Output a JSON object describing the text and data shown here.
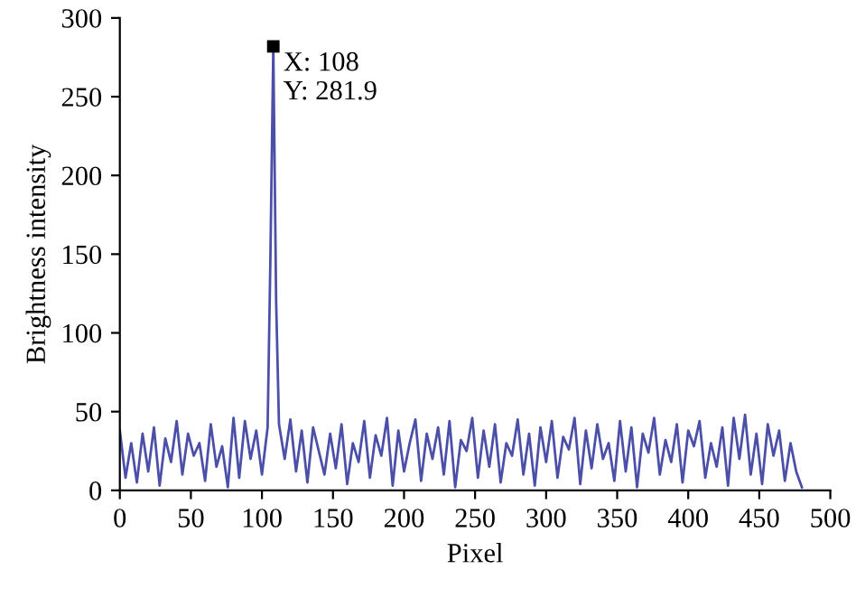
{
  "chart_data": {
    "type": "line",
    "xlabel": "Pixel",
    "ylabel": "Brightness intensity",
    "xlim": [
      0,
      500
    ],
    "ylim": [
      0,
      300
    ],
    "xticks": [
      0,
      50,
      100,
      150,
      200,
      250,
      300,
      350,
      400,
      450,
      500
    ],
    "yticks": [
      0,
      50,
      100,
      150,
      200,
      250,
      300
    ],
    "grid": false,
    "marker": "none",
    "line_style": "solid",
    "series": [
      {
        "color": "#4b4fa8",
        "x": [
          0,
          4,
          8,
          12,
          16,
          20,
          24,
          28,
          32,
          36,
          40,
          44,
          48,
          52,
          56,
          60,
          64,
          68,
          72,
          76,
          80,
          84,
          88,
          92,
          96,
          100,
          104,
          106,
          108,
          110,
          112,
          116,
          120,
          124,
          128,
          132,
          136,
          140,
          144,
          148,
          152,
          156,
          160,
          164,
          168,
          172,
          176,
          180,
          184,
          188,
          192,
          196,
          200,
          204,
          208,
          212,
          216,
          220,
          224,
          228,
          232,
          236,
          240,
          244,
          248,
          252,
          256,
          260,
          264,
          268,
          272,
          276,
          280,
          284,
          288,
          292,
          296,
          300,
          304,
          308,
          312,
          316,
          320,
          324,
          328,
          332,
          336,
          340,
          344,
          348,
          352,
          356,
          360,
          364,
          368,
          372,
          376,
          380,
          384,
          388,
          392,
          396,
          400,
          404,
          408,
          412,
          416,
          420,
          424,
          428,
          432,
          436,
          440,
          444,
          448,
          452,
          456,
          460,
          464,
          468,
          472,
          476,
          480
        ],
        "values": [
          38,
          8,
          30,
          5,
          36,
          12,
          40,
          3,
          33,
          18,
          44,
          10,
          36,
          22,
          30,
          6,
          42,
          15,
          28,
          2,
          46,
          8,
          44,
          20,
          38,
          10,
          40,
          150,
          281.9,
          120,
          42,
          20,
          45,
          12,
          38,
          5,
          40,
          25,
          10,
          36,
          14,
          42,
          4,
          30,
          18,
          44,
          8,
          35,
          22,
          46,
          3,
          38,
          12,
          30,
          45,
          6,
          36,
          20,
          40,
          10,
          44,
          2,
          32,
          25,
          46,
          8,
          38,
          15,
          42,
          5,
          30,
          22,
          45,
          10,
          36,
          3,
          40,
          18,
          44,
          8,
          34,
          26,
          46,
          4,
          38,
          14,
          42,
          20,
          30,
          6,
          44,
          12,
          40,
          2,
          36,
          24,
          46,
          10,
          32,
          18,
          42,
          5,
          38,
          28,
          44,
          8,
          30,
          15,
          40,
          3,
          46,
          20,
          48,
          10,
          36,
          4,
          42,
          22,
          38,
          6,
          30,
          12,
          2
        ]
      }
    ],
    "annotations": [
      {
        "text": "X: 108\nY: 281.9",
        "x": 108,
        "y": 281.9
      }
    ]
  }
}
